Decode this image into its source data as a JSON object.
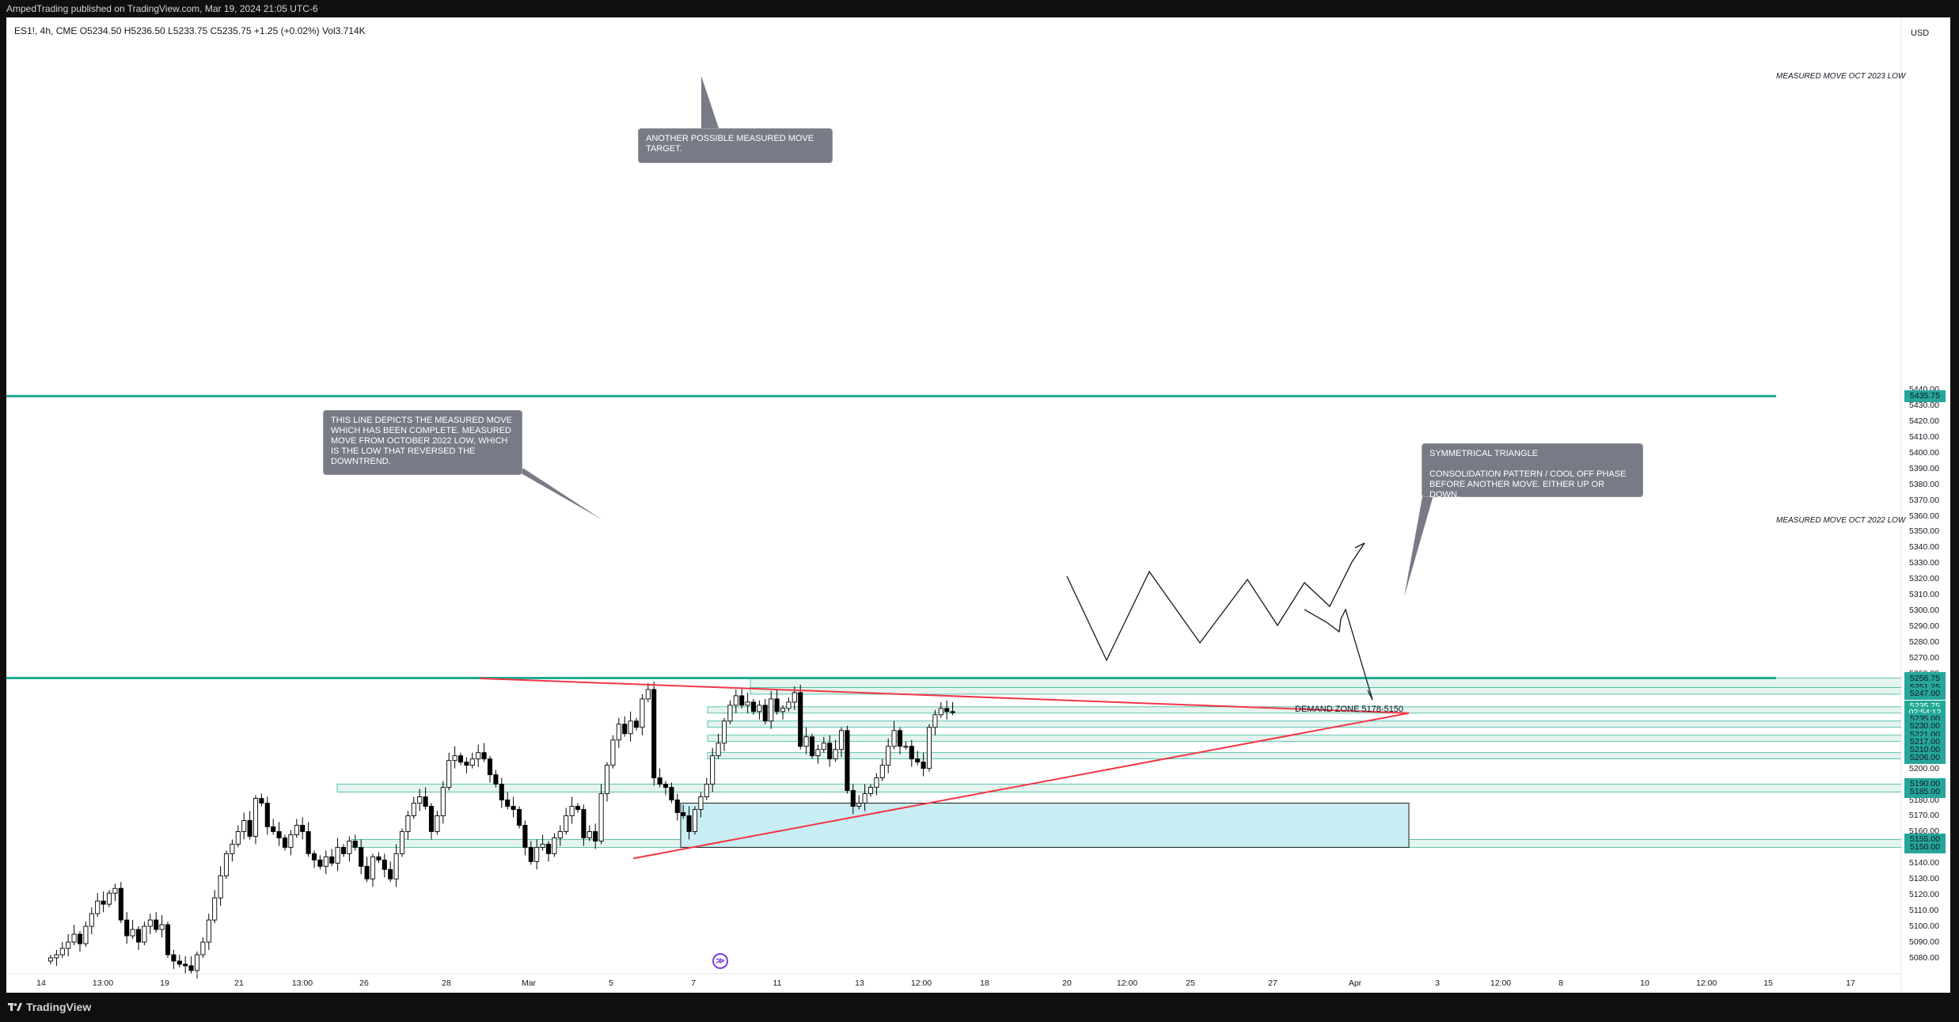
{
  "header": {
    "title": "AmpedTrading published on TradingView.com, Mar 19, 2024 21:05 UTC-6"
  },
  "chart": {
    "ohlc_line": "ES1!, 4h, CME  O5234.50  H5236.50  L5233.75  C5235.75  +1.25 (+0.02%)  Vol3.714K",
    "currency": "USD",
    "annotations": {
      "top": "ANOTHER POSSIBLE MEASURED MOVE\nTARGET.",
      "left": "THIS LINE DEPICTS THE MEASURED MOVE\nWHICH HAS BEEN COMPLETE. MEASURED\nMOVE FROM OCTOBER 2022 LOW, WHICH\nIS THE LOW THAT REVERSED THE\nDOWNTREND.",
      "right": "SYMMETRICAL TRIANGLE\n\nCONSOLIDATION PATTERN / COOL OFF PHASE\nBEFORE ANOTHER MOVE. EITHER UP OR DOWN."
    },
    "level_labels": [
      "MEASURED MOVE OCT 2023 LOW",
      "MEASURED MOVE OCT 2022 LOW"
    ],
    "demand_zone_label": "DEMAND ZONE 5178-5150",
    "price_labels": [
      "5435.75",
      "5257.25",
      "5256.75",
      "5251.25",
      "5247.00",
      "5235.75",
      "02:54:12",
      "5235.00",
      "5230.00",
      "5221.00",
      "5217.00",
      "5210.00",
      "5206.00",
      "5190.00",
      "5185.00",
      "5155.00",
      "5150.00"
    ],
    "y_ticks": [
      "5440.00",
      "5430.00",
      "5420.00",
      "5410.00",
      "5400.00",
      "5390.00",
      "5380.00",
      "5370.00",
      "5360.00",
      "5350.00",
      "5340.00",
      "5330.00",
      "5320.00",
      "5310.00",
      "5300.00",
      "5290.00",
      "5280.00",
      "5270.00",
      "5260.00",
      "5250.00",
      "5240.00",
      "5220.00",
      "5200.00",
      "5180.00",
      "5170.00",
      "5160.00",
      "5140.00",
      "5130.00",
      "5120.00",
      "5110.00",
      "5100.00",
      "5090.00",
      "5080.00"
    ],
    "x_ticks": [
      "14",
      "13:00",
      "19",
      "21",
      "13:00",
      "26",
      "28",
      "Mar",
      "5",
      "7",
      "11",
      "13",
      "12:00",
      "18",
      "20",
      "12:00",
      "25",
      "27",
      "Apr",
      "3",
      "12:00",
      "8",
      "10",
      "12:00",
      "15",
      "17"
    ],
    "colors": {
      "up": "#ffffff",
      "down": "#000000",
      "level_line": "#22ab94",
      "trend_line": "#f23645",
      "zone_fill": "#c8eef3",
      "zone_border": "#1b1b1b"
    }
  },
  "footer": {
    "brand": "TradingView"
  }
}
